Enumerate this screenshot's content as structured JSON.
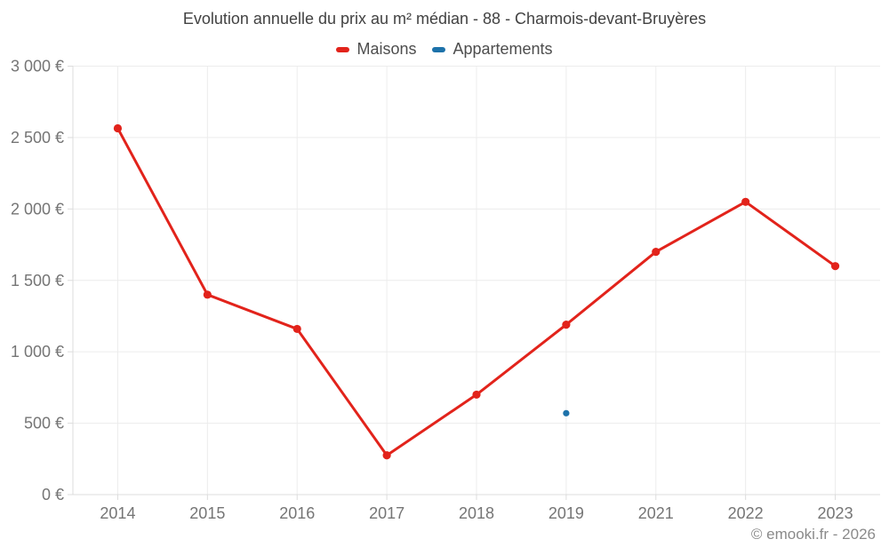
{
  "chart_data": {
    "type": "line",
    "title": "Evolution annuelle du prix au m² médian - 88 - Charmois-devant-Bruyères",
    "categories": [
      "2014",
      "2015",
      "2016",
      "2017",
      "2018",
      "2019",
      "2021",
      "2022",
      "2023"
    ],
    "series": [
      {
        "name": "Maisons",
        "color": "#e2231b",
        "values": [
          2565,
          1400,
          1160,
          275,
          700,
          1190,
          1700,
          2050,
          1600
        ]
      },
      {
        "name": "Appartements",
        "color": "#1d72aa",
        "values": [
          null,
          null,
          null,
          null,
          null,
          570,
          null,
          null,
          null
        ]
      }
    ],
    "xlabel": "",
    "ylabel": "",
    "ylim": [
      0,
      3000
    ],
    "ytick_step": 500,
    "ytick_labels": [
      "0 €",
      "500 €",
      "1 000 €",
      "1 500 €",
      "2 000 €",
      "2 500 €",
      "3 000 €"
    ],
    "currency": "€",
    "grid": true,
    "legend_position": "top"
  },
  "footer": {
    "text": "© emooki.fr - 2026"
  },
  "colors": {
    "maisons": "#e2231b",
    "appartements": "#1d72aa",
    "grid": "#ececec",
    "axis": "#dcdcdc",
    "axis_text": "#757575",
    "title_text": "#424242",
    "legend_text": "#4d4d4d",
    "footer_text": "#8a8a8a",
    "background": "#ffffff"
  }
}
